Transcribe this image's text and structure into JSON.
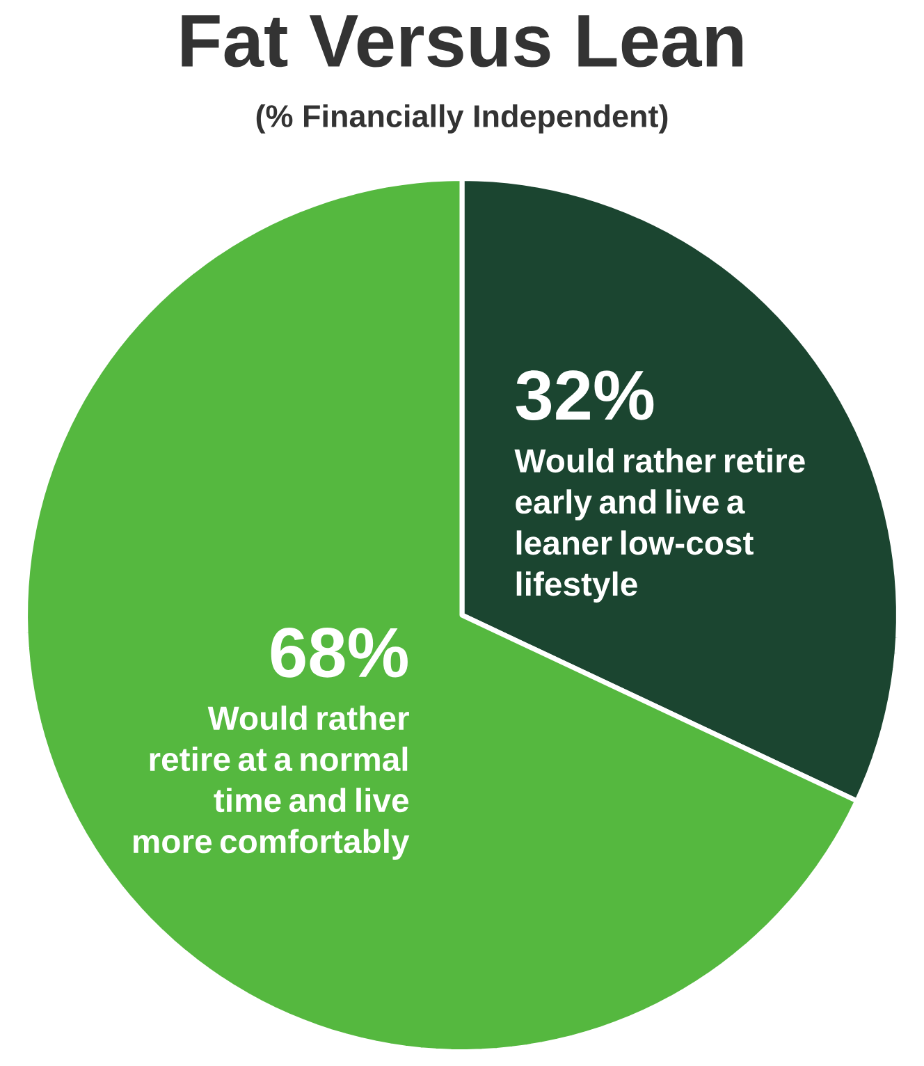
{
  "chart_data": {
    "type": "pie",
    "title": "Fat Versus Lean",
    "subtitle": "(% Financially Independent)",
    "categories": [
      "Would rather retire early and live a leaner low-cost lifestyle",
      "Would rather retire at a normal time and live more comfortably"
    ],
    "values": [
      32,
      68
    ],
    "value_labels": [
      "32%",
      "68%"
    ],
    "colors": [
      "#1b4530",
      "#55b83f"
    ]
  }
}
